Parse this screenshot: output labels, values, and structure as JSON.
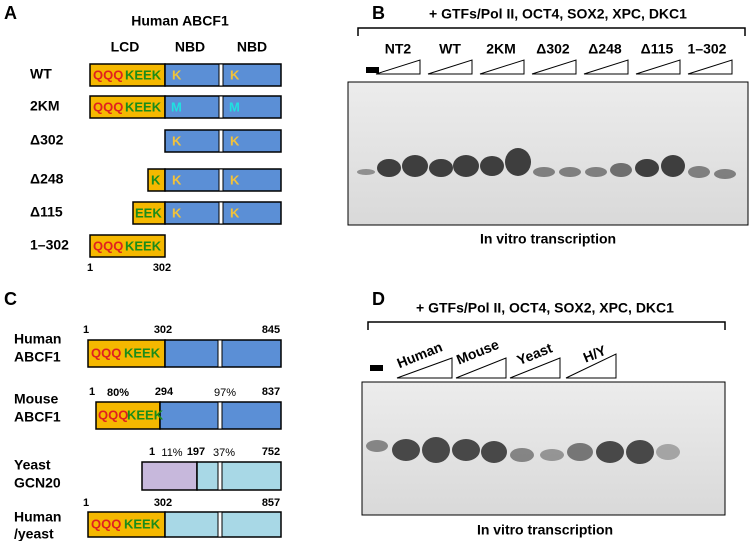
{
  "panels": {
    "a": {
      "label": "A",
      "title": "Human ABCF1",
      "headers": [
        "LCD",
        "NBD",
        "NBD"
      ],
      "rows": [
        {
          "name": "WT",
          "segments": [
            "QQQ",
            "KEEK",
            "K",
            "K"
          ]
        },
        {
          "name": "2KM",
          "segments": [
            "QQQ",
            "KEEK",
            "M",
            "M"
          ]
        },
        {
          "name": "Δ302",
          "segments": [
            "K",
            "K"
          ]
        },
        {
          "name": "Δ248",
          "segments": [
            "K",
            "K",
            "K"
          ]
        },
        {
          "name": "Δ115",
          "segments": [
            "EEK",
            "K",
            "K"
          ]
        },
        {
          "name": "1–302",
          "segments": [
            "QQQ",
            "KEEK"
          ]
        }
      ],
      "scale": [
        "1",
        "302"
      ]
    },
    "b": {
      "label": "B",
      "header": "+ GTFs/Pol II, OCT4, SOX2, XPC, DKC1",
      "lanes": [
        "NT2",
        "WT",
        "2KM",
        "Δ302",
        "Δ248",
        "Δ115",
        "1–302"
      ],
      "caption": "In vitro transcription"
    },
    "c": {
      "label": "C",
      "rows": [
        {
          "name": [
            "Human",
            "ABCF1"
          ],
          "segments": [
            "QQQ",
            "KEEK"
          ],
          "numbers": [
            "1",
            "302",
            "845"
          ]
        },
        {
          "name": [
            "Mouse",
            "ABCF1"
          ],
          "segments": [
            "QQQ",
            "KEEK"
          ],
          "numbers": [
            "1",
            "80%",
            "294",
            "97%",
            "837"
          ]
        },
        {
          "name": [
            "Yeast",
            "GCN20"
          ],
          "numbers": [
            "1",
            "11%",
            "197",
            "37%",
            "752"
          ]
        },
        {
          "name": [
            "Human",
            "/yeast"
          ],
          "segments": [
            "QQQ",
            "KEEK"
          ],
          "numbers": [
            "1",
            "302",
            "857"
          ]
        }
      ]
    },
    "d": {
      "label": "D",
      "header": "+ GTFs/Pol II, OCT4, SOX2, XPC, DKC1",
      "lanes": [
        "Human",
        "Mouse",
        "Yeast",
        "H/Y"
      ],
      "caption": "In vitro transcription"
    }
  }
}
